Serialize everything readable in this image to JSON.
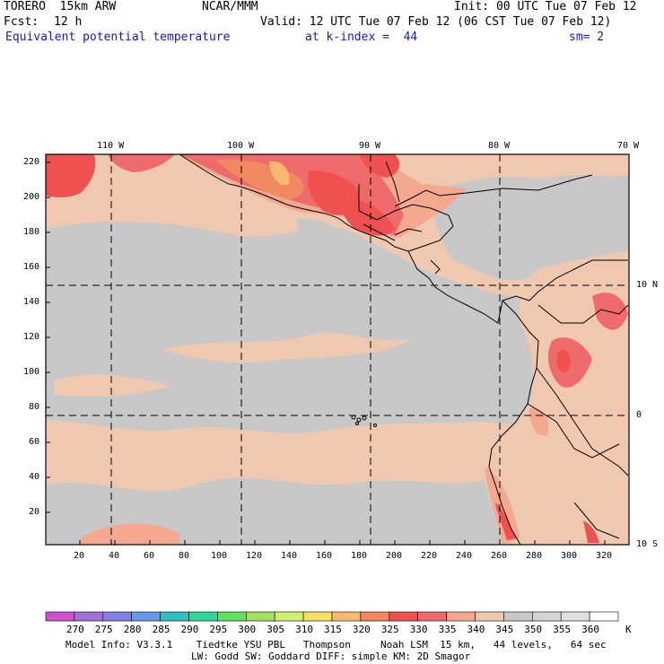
{
  "header": {
    "model": "TORERO  15km ARW",
    "org": "NCAR/MMM",
    "init": "Init: 00 UTC Tue 07 Feb 12",
    "fcst_label": "Fcst:",
    "fcst_value": "12 h",
    "valid": "Valid: 12 UTC Tue 07 Feb 12 (06 CST Tue 07 Feb 12)",
    "field": "Equivalent potential temperature",
    "level": "at k-index =  44",
    "smoothing": "sm= 2"
  },
  "map": {
    "longitude_labels": [
      "110 W",
      "100 W",
      "90 W",
      "80 W",
      "70 W"
    ],
    "latitude_labels": [
      "10 N",
      "0",
      "10 S"
    ],
    "y_ticks": [
      "220",
      "200",
      "180",
      "160",
      "140",
      "120",
      "100",
      "80",
      "60",
      "40",
      "20"
    ],
    "x_ticks": [
      "20",
      "40",
      "60",
      "80",
      "100",
      "120",
      "140",
      "160",
      "180",
      "200",
      "220",
      "240",
      "260",
      "280",
      "300",
      "320"
    ],
    "colors": {
      "frame": "#000000",
      "background_field": "#c8c8c8",
      "warm_field": "#f0c8b0",
      "hot_field": "#ef5050"
    }
  },
  "colorbar": {
    "values": [
      "270",
      "275",
      "280",
      "285",
      "290",
      "295",
      "300",
      "305",
      "310",
      "315",
      "320",
      "325",
      "330",
      "335",
      "340",
      "345",
      "350",
      "355",
      "360"
    ],
    "unit": "K",
    "colors": [
      "#d050d0",
      "#a070d8",
      "#8080e8",
      "#6898e8",
      "#30c0c0",
      "#30d898",
      "#60e060",
      "#a0e060",
      "#d0f070",
      "#f8e060",
      "#f8b870",
      "#f08860",
      "#ef5050",
      "#ef6a6a",
      "#f4a890",
      "#f0c8b0",
      "#c8c8c8",
      "#d4d4d4",
      "#e0e0e0",
      "#ffffff"
    ]
  },
  "footer": {
    "line1": "Model Info: V3.3.1    Tiedtke YSU PBL   Thompson     Noah LSM  15 km,   44 levels,   64 sec",
    "line2": "LW: Godd SW: Goddard DIFF: simple KM: 2D Smagor"
  }
}
